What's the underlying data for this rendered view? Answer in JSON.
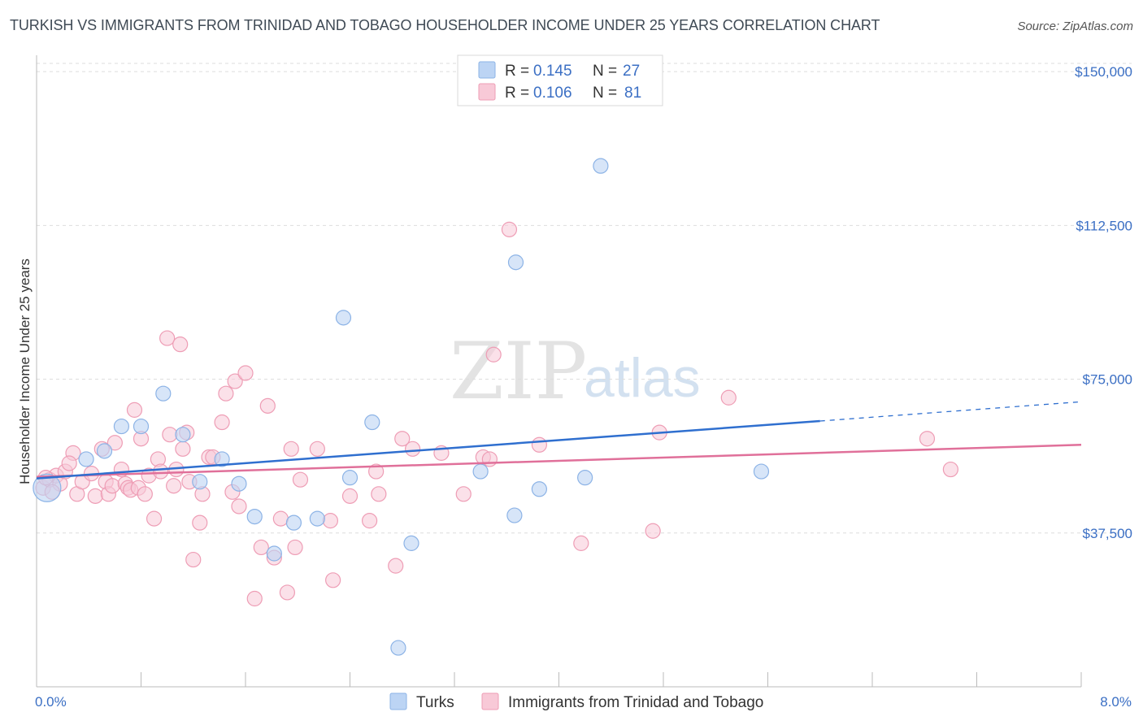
{
  "header": {
    "title": "TURKISH VS IMMIGRANTS FROM TRINIDAD AND TOBAGO HOUSEHOLDER INCOME UNDER 25 YEARS CORRELATION CHART",
    "source": "Source: ZipAtlas.com"
  },
  "legend": {
    "r_label": "R =",
    "n_label": "N =",
    "series": [
      {
        "r": "0.145",
        "n": "27"
      },
      {
        "r": "0.106",
        "n": "81"
      }
    ]
  },
  "watermark": {
    "zip": "ZIP",
    "atlas": "atlas"
  },
  "colors": {
    "turks_fill": "#bcd4f4",
    "turks_stroke": "#8cb3e6",
    "turks_line": "#2f6fcf",
    "tt_fill": "#f8c9d7",
    "tt_stroke": "#ee9db5",
    "tt_line": "#e0709a",
    "grid": "#dddddd",
    "axis_label": "#3b6fc4"
  },
  "chart_data": {
    "type": "scatter",
    "title": "TURKISH VS IMMIGRANTS FROM TRINIDAD AND TOBAGO HOUSEHOLDER INCOME UNDER 25 YEARS CORRELATION CHART",
    "xlabel": "",
    "ylabel": "Householder Income Under 25 years",
    "xlim": [
      0,
      8
    ],
    "ylim": [
      0,
      152000
    ],
    "x_tick_labels": [
      "0.0%",
      "8.0%"
    ],
    "y_ticks": [
      37500,
      75000,
      112500,
      150000
    ],
    "y_tick_labels": [
      "$37,500",
      "$75,000",
      "$112,500",
      "$150,000"
    ],
    "series": [
      {
        "name": "Turks",
        "r": 0.145,
        "n": 27,
        "trend": {
          "x0": 0,
          "y0": 50800,
          "x1": 6.0,
          "y1": 64800,
          "dash_to_x": 8.0,
          "dash_to_y": 69500
        },
        "points": [
          [
            0.08,
            48500
          ],
          [
            0.38,
            55500
          ],
          [
            0.52,
            57500
          ],
          [
            0.65,
            63500
          ],
          [
            0.8,
            63500
          ],
          [
            0.97,
            71500
          ],
          [
            1.12,
            61500
          ],
          [
            1.25,
            50000
          ],
          [
            1.42,
            55500
          ],
          [
            1.55,
            49500
          ],
          [
            1.67,
            41500
          ],
          [
            1.82,
            32500
          ],
          [
            1.97,
            40000
          ],
          [
            2.15,
            41000
          ],
          [
            2.35,
            90000
          ],
          [
            2.4,
            51000
          ],
          [
            2.57,
            64500
          ],
          [
            2.77,
            9500
          ],
          [
            2.87,
            35000
          ],
          [
            3.4,
            52500
          ],
          [
            3.67,
            103500
          ],
          [
            3.66,
            41800
          ],
          [
            3.85,
            48200
          ],
          [
            4.2,
            51000
          ],
          [
            4.32,
            127000
          ],
          [
            5.55,
            52500
          ],
          [
            0.38,
            50800
          ]
        ]
      },
      {
        "name": "Immigrants from Trinidad and Tobago",
        "r": 0.106,
        "n": 81,
        "trend": {
          "x0": 0,
          "y0": 51200,
          "x1": 8.0,
          "y1": 59000
        },
        "points": [
          [
            0.05,
            48500
          ],
          [
            0.1,
            50500
          ],
          [
            0.15,
            51500
          ],
          [
            0.18,
            49500
          ],
          [
            0.22,
            52500
          ],
          [
            0.28,
            57000
          ],
          [
            0.31,
            47000
          ],
          [
            0.35,
            50000
          ],
          [
            0.42,
            52000
          ],
          [
            0.45,
            46500
          ],
          [
            0.5,
            58000
          ],
          [
            0.53,
            50000
          ],
          [
            0.55,
            47000
          ],
          [
            0.58,
            49000
          ],
          [
            0.6,
            59500
          ],
          [
            0.65,
            53000
          ],
          [
            0.68,
            49500
          ],
          [
            0.7,
            48500
          ],
          [
            0.72,
            48000
          ],
          [
            0.75,
            67500
          ],
          [
            0.78,
            48500
          ],
          [
            0.8,
            60500
          ],
          [
            0.83,
            47000
          ],
          [
            0.86,
            51500
          ],
          [
            0.9,
            41000
          ],
          [
            0.93,
            55500
          ],
          [
            0.95,
            52500
          ],
          [
            1.0,
            85000
          ],
          [
            1.02,
            61500
          ],
          [
            1.05,
            49000
          ],
          [
            1.07,
            53000
          ],
          [
            1.1,
            83500
          ],
          [
            1.12,
            58000
          ],
          [
            1.15,
            62000
          ],
          [
            1.17,
            50000
          ],
          [
            1.2,
            31000
          ],
          [
            1.25,
            40000
          ],
          [
            1.27,
            47000
          ],
          [
            1.32,
            56000
          ],
          [
            1.35,
            56000
          ],
          [
            1.42,
            64500
          ],
          [
            1.45,
            71500
          ],
          [
            1.5,
            47500
          ],
          [
            1.52,
            74500
          ],
          [
            1.55,
            44000
          ],
          [
            1.6,
            76500
          ],
          [
            1.67,
            21500
          ],
          [
            1.72,
            34000
          ],
          [
            1.77,
            68500
          ],
          [
            1.82,
            31500
          ],
          [
            1.87,
            41000
          ],
          [
            1.92,
            23000
          ],
          [
            1.95,
            58000
          ],
          [
            1.98,
            34000
          ],
          [
            2.02,
            50500
          ],
          [
            2.15,
            58000
          ],
          [
            2.25,
            40500
          ],
          [
            2.27,
            26000
          ],
          [
            2.4,
            46500
          ],
          [
            2.55,
            40500
          ],
          [
            2.6,
            52500
          ],
          [
            2.62,
            47000
          ],
          [
            2.75,
            29500
          ],
          [
            2.8,
            60500
          ],
          [
            2.88,
            58000
          ],
          [
            3.1,
            57000
          ],
          [
            3.27,
            47000
          ],
          [
            3.42,
            56000
          ],
          [
            3.47,
            55500
          ],
          [
            3.5,
            81000
          ],
          [
            3.62,
            111500
          ],
          [
            3.85,
            59000
          ],
          [
            4.17,
            35000
          ],
          [
            4.72,
            38000
          ],
          [
            4.77,
            62000
          ],
          [
            5.3,
            70500
          ],
          [
            6.82,
            60500
          ],
          [
            7.0,
            53000
          ],
          [
            0.07,
            51000
          ],
          [
            0.25,
            54500
          ],
          [
            0.12,
            47500
          ]
        ]
      }
    ],
    "legend_position": "top-center",
    "bottom_legend": [
      "Turks",
      "Immigrants from Trinidad and Tobago"
    ]
  }
}
